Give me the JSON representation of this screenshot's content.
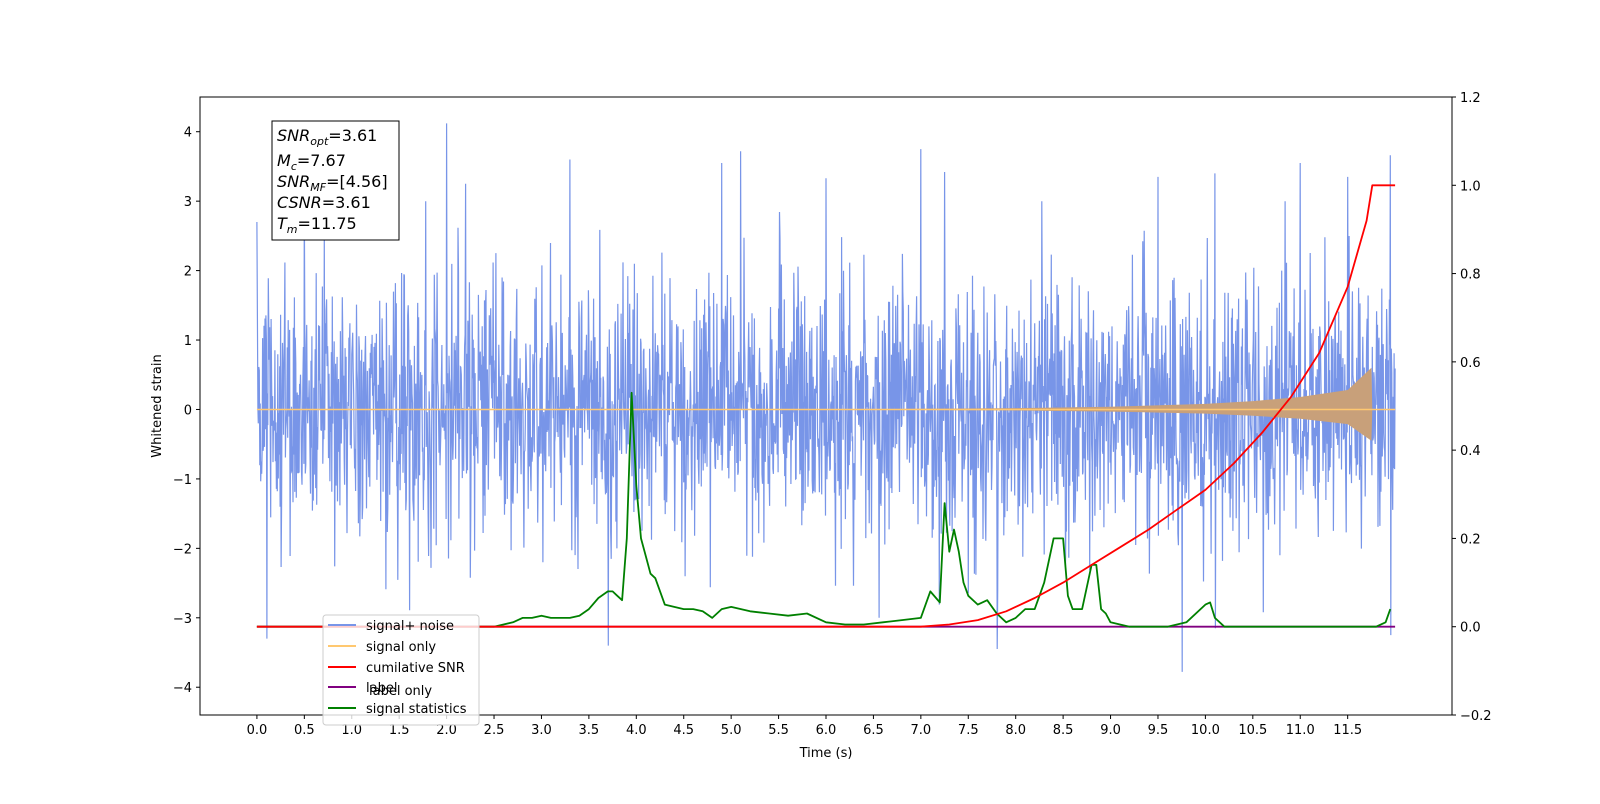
{
  "chart_data": {
    "type": "line",
    "title": "",
    "xlabel": "Time (s)",
    "ylabel": "Whitened strain",
    "y2label": "",
    "xlim": [
      -0.6,
      12.6
    ],
    "ylim": [
      -4.4,
      4.5
    ],
    "y2lim": [
      -0.2,
      1.2
    ],
    "x_ticks": [
      "0.0",
      "0.5",
      "1.0",
      "1.5",
      "2.0",
      "2.5",
      "3.0",
      "3.5",
      "4.0",
      "4.5",
      "5.0",
      "5.5",
      "6.0",
      "6.5",
      "7.0",
      "7.5",
      "8.0",
      "8.5",
      "9.0",
      "9.5",
      "10.0",
      "10.5",
      "11.0",
      "11.5"
    ],
    "y_ticks": [
      "4",
      "3",
      "2",
      "1",
      "0",
      "−1",
      "−2",
      "−3",
      "−4"
    ],
    "y2_ticks": [
      "1.2",
      "1.0",
      "0.8",
      "0.6",
      "0.4",
      "0.2",
      "0.0",
      "−0.2"
    ],
    "grid": false,
    "legend_position": "lower-left",
    "legend": [
      {
        "label": "signal+ noise",
        "color": "#7895e8"
      },
      {
        "label": "signal only",
        "color": "#ffc870"
      },
      {
        "label": "cumilative SNR",
        "color": "#ff0000"
      },
      {
        "label": "label",
        "color": "#800080"
      },
      {
        "label": "signal statistics",
        "color": "#008000"
      }
    ],
    "hidden_legend_text": "label only",
    "annotation": [
      {
        "base": "SNR",
        "sub": "opt",
        "value": "=3.61"
      },
      {
        "base": "M",
        "sub": "c",
        "value": "=7.67"
      },
      {
        "base": "SNR",
        "sub": "MF",
        "value": "=[4.56]"
      },
      {
        "base": "CSNR",
        "sub": "",
        "value": "=3.61"
      },
      {
        "base": "T",
        "sub": "m",
        "value": "=11.75"
      }
    ],
    "series": [
      {
        "name": "signal+ noise",
        "axis": "left",
        "color": "#7895e8",
        "x_range": [
          0.0,
          12.0
        ],
        "description": "dense noisy time series, approx. amplitude within ±2.5 with peaks up to 4.12",
        "peaks_x": [
          0.0,
          0.5,
          2.0,
          2.2,
          3.3,
          4.9,
          5.1,
          6.0,
          7.0,
          7.25,
          9.5,
          10.1,
          11.0,
          11.5,
          11.95
        ],
        "peaks_y": [
          2.7,
          3.1,
          4.12,
          3.25,
          3.6,
          3.55,
          3.72,
          3.33,
          3.75,
          3.42,
          3.35,
          3.4,
          3.55,
          3.35,
          3.66
        ],
        "troughs_x": [
          0.1,
          3.7,
          7.8,
          9.75,
          10.1,
          11.95
        ],
        "troughs_y": [
          -3.3,
          -3.4,
          -3.45,
          -3.78,
          -3.15,
          -3.25
        ]
      },
      {
        "name": "signal only",
        "axis": "left",
        "color": "#ffc870",
        "description": "chirp waveform, ~0 until ~7s growing to ±0.6 at 11.75s then 0",
        "x": [
          0.0,
          6.0,
          8.0,
          9.0,
          10.0,
          10.5,
          11.0,
          11.5,
          11.75,
          11.76,
          12.0
        ],
        "envelope": [
          0.0,
          0.0,
          0.02,
          0.04,
          0.08,
          0.12,
          0.18,
          0.28,
          0.6,
          0.0,
          0.0
        ]
      },
      {
        "name": "cumilative SNR",
        "axis": "right",
        "color": "#ff0000",
        "x": [
          0.0,
          7.0,
          7.3,
          7.6,
          7.9,
          8.2,
          8.5,
          8.8,
          9.1,
          9.4,
          9.7,
          10.0,
          10.3,
          10.6,
          10.9,
          11.2,
          11.5,
          11.7,
          11.76,
          11.9,
          12.0
        ],
        "values": [
          0.0,
          0.0,
          0.005,
          0.015,
          0.035,
          0.065,
          0.1,
          0.14,
          0.18,
          0.22,
          0.265,
          0.31,
          0.37,
          0.44,
          0.52,
          0.62,
          0.77,
          0.92,
          1.0,
          1.0,
          1.0
        ]
      },
      {
        "name": "label",
        "axis": "right",
        "color": "#800080",
        "x": [
          0.0,
          12.0
        ],
        "values": [
          0.0,
          0.0
        ]
      },
      {
        "name": "signal statistics",
        "axis": "right",
        "color": "#008000",
        "x": [
          0.0,
          2.5,
          2.7,
          2.8,
          2.9,
          3.0,
          3.1,
          3.2,
          3.3,
          3.4,
          3.5,
          3.6,
          3.7,
          3.75,
          3.8,
          3.85,
          3.9,
          3.95,
          4.0,
          4.05,
          4.1,
          4.15,
          4.2,
          4.3,
          4.4,
          4.5,
          4.6,
          4.7,
          4.8,
          4.9,
          5.0,
          5.2,
          5.4,
          5.6,
          5.8,
          6.0,
          6.2,
          6.4,
          6.6,
          6.8,
          7.0,
          7.1,
          7.2,
          7.25,
          7.3,
          7.35,
          7.4,
          7.45,
          7.5,
          7.6,
          7.7,
          7.8,
          7.9,
          8.0,
          8.1,
          8.2,
          8.3,
          8.4,
          8.45,
          8.5,
          8.55,
          8.6,
          8.7,
          8.8,
          8.85,
          8.9,
          8.95,
          9.0,
          9.2,
          9.4,
          9.6,
          9.8,
          10.0,
          10.05,
          10.1,
          10.2,
          10.4,
          10.6,
          10.8,
          11.0,
          11.2,
          11.4,
          11.6,
          11.8,
          11.9,
          11.95
        ],
        "values": [
          0.0,
          0.0,
          0.01,
          0.02,
          0.02,
          0.025,
          0.02,
          0.02,
          0.02,
          0.025,
          0.04,
          0.065,
          0.08,
          0.08,
          0.07,
          0.06,
          0.2,
          0.53,
          0.32,
          0.2,
          0.16,
          0.12,
          0.11,
          0.05,
          0.045,
          0.04,
          0.04,
          0.035,
          0.02,
          0.04,
          0.045,
          0.035,
          0.03,
          0.025,
          0.03,
          0.01,
          0.005,
          0.005,
          0.01,
          0.015,
          0.02,
          0.08,
          0.055,
          0.28,
          0.17,
          0.22,
          0.17,
          0.1,
          0.07,
          0.05,
          0.06,
          0.03,
          0.01,
          0.02,
          0.04,
          0.04,
          0.1,
          0.2,
          0.2,
          0.2,
          0.07,
          0.04,
          0.04,
          0.14,
          0.14,
          0.04,
          0.03,
          0.01,
          0.0,
          0.0,
          0.0,
          0.01,
          0.05,
          0.055,
          0.02,
          0.0,
          0.0,
          0.0,
          0.0,
          0.0,
          0.0,
          0.0,
          0.0,
          0.0,
          0.01,
          0.04
        ]
      }
    ]
  }
}
